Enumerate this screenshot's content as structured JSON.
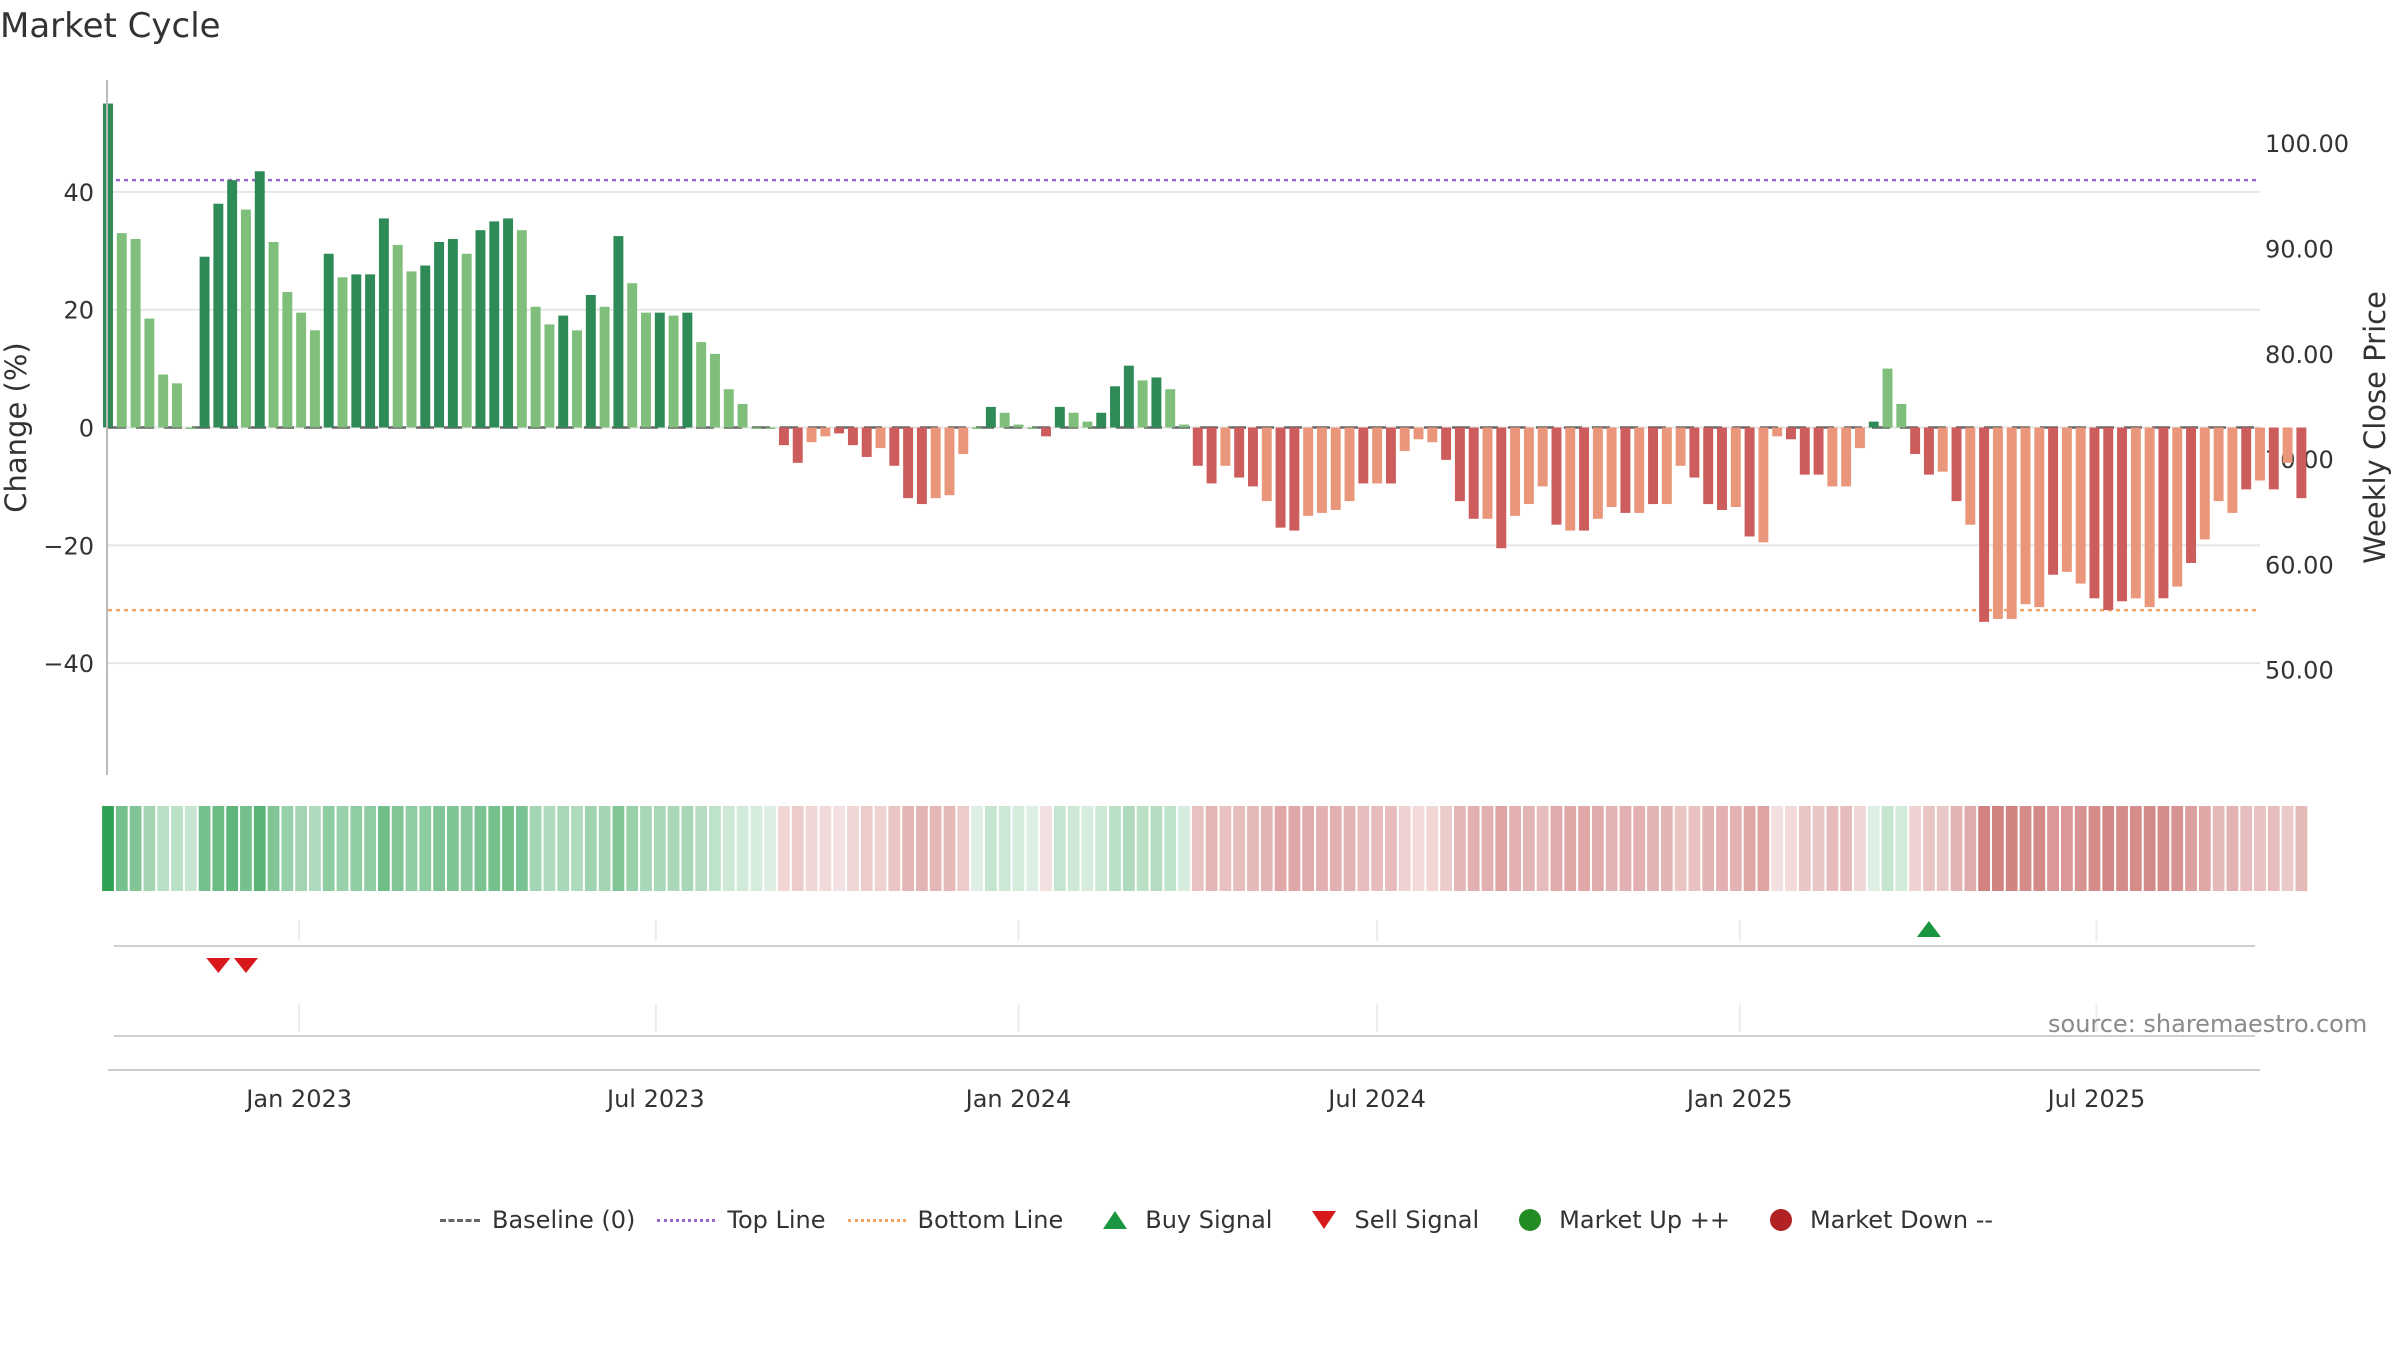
{
  "page": {
    "title": "Market Cycle",
    "source": "source: sharemaestro.com"
  },
  "colors": {
    "dark_green": "#2e8b57",
    "light_green": "#7fbf7b",
    "dark_red": "#cd5c5c",
    "light_red": "#e9967a",
    "top_line": "#9966cc",
    "bottom_line": "#f4a460",
    "buy": "#1a9641",
    "sell": "#d7191c",
    "market_up": "#228b22",
    "market_down": "#b22222"
  },
  "legend": [
    {
      "key": "baseline",
      "label": "Baseline (0)",
      "icon": "dash-line",
      "color": "#666666"
    },
    {
      "key": "top",
      "label": "Top Line",
      "icon": "dotted-line",
      "color": "#9966cc"
    },
    {
      "key": "bottom",
      "label": "Bottom Line",
      "icon": "dotted-line",
      "color": "#f4a460"
    },
    {
      "key": "buy",
      "label": "Buy Signal",
      "icon": "triangle-up",
      "color": "#1a9641"
    },
    {
      "key": "sell",
      "label": "Sell Signal",
      "icon": "triangle-down",
      "color": "#d7191c"
    },
    {
      "key": "up",
      "label": "Market Up ++",
      "icon": "circle",
      "color": "#228b22"
    },
    {
      "key": "down",
      "label": "Market Down --",
      "icon": "circle",
      "color": "#b22222"
    }
  ],
  "chart_data": {
    "type": "bar",
    "title": "Market Cycle",
    "xlabel": "",
    "ylabel": "Change (%)",
    "y2label": "Weekly Close Price",
    "ylim": [
      -59,
      59
    ],
    "y2lim": [
      40,
      106
    ],
    "yticks": [
      -40,
      -20,
      0,
      20,
      40
    ],
    "ytick_labels": [
      "−40",
      "−20",
      "0",
      "20",
      "40"
    ],
    "y2ticks": [
      50,
      60,
      70,
      80,
      90,
      100
    ],
    "y2tick_labels": [
      "50.00",
      "60.00",
      "70.00",
      "80.00",
      "90.00",
      "100.00"
    ],
    "xlim": [
      "2022-09-26",
      "2025-09-22"
    ],
    "xticks": [
      {
        "label": "Jan 2023",
        "date": "2023-01-01"
      },
      {
        "label": "Jul 2023",
        "date": "2023-07-01"
      },
      {
        "label": "Jan 2024",
        "date": "2024-01-01"
      },
      {
        "label": "Jul 2024",
        "date": "2024-07-01"
      },
      {
        "label": "Jan 2025",
        "date": "2025-01-01"
      },
      {
        "label": "Jul 2025",
        "date": "2025-07-01"
      }
    ],
    "grid": true,
    "legend_position": "bottom",
    "start_date": "2022-09-26",
    "interval_days": 7,
    "values": [
      55,
      33,
      32,
      18.5,
      9,
      7.5,
      0,
      29,
      38,
      42,
      37,
      43.5,
      31.5,
      23,
      19.5,
      16.5,
      29.5,
      25.5,
      26,
      26,
      35.5,
      31,
      26.5,
      27.5,
      31.5,
      32,
      29.5,
      33.5,
      35,
      35.5,
      33.5,
      20.5,
      17.5,
      19,
      16.5,
      22.5,
      20.5,
      32.5,
      24.5,
      19.5,
      19.5,
      19,
      19.5,
      14.5,
      12.5,
      6.5,
      4,
      0,
      0,
      -3,
      -6,
      -2.5,
      -1.5,
      -1,
      -3,
      -5,
      -3.5,
      -6.5,
      -12,
      -13,
      -12,
      -11.5,
      -4.5,
      0,
      3.5,
      2.5,
      0.5,
      0,
      -1.5,
      3.5,
      2.5,
      1,
      2.5,
      7,
      10.5,
      8,
      8.5,
      6.5,
      0.5,
      -6.5,
      -9.5,
      -6.5,
      -8.5,
      -10,
      -12.5,
      -17,
      -17.5,
      -15,
      -14.5,
      -14,
      -12.5,
      -9.5,
      -9.5,
      -9.5,
      -4,
      -2,
      -2.5,
      -5.5,
      -12.5,
      -15.5,
      -15.5,
      -20.5,
      -15,
      -13,
      -10,
      -16.5,
      -17.5,
      -17.5,
      -15.5,
      -13.5,
      -14.5,
      -14.5,
      -13,
      -13,
      -6.5,
      -8.5,
      -13,
      -14,
      -13.5,
      -18.5,
      -19.5,
      -1.5,
      -2,
      -8,
      -8,
      -10,
      -10,
      -3.5,
      1,
      10,
      4,
      -4.5,
      -8,
      -7.5,
      -12.5,
      -16.5,
      -33,
      -32.5,
      -32.5,
      -30,
      -30.5,
      -25,
      -24.5,
      -26.5,
      -29,
      -31,
      -29.5,
      -29,
      -30.5,
      -29,
      -27,
      -23,
      -19,
      -12.5,
      -14.5,
      -10.5,
      -9,
      -10.5,
      -6,
      -12
    ],
    "shades": [
      2,
      1,
      1,
      1,
      1,
      1,
      1,
      2,
      2,
      2,
      1,
      2,
      1,
      1,
      1,
      1,
      2,
      1,
      2,
      2,
      2,
      1,
      1,
      2,
      2,
      2,
      1,
      2,
      2,
      2,
      1,
      1,
      1,
      2,
      1,
      2,
      1,
      2,
      1,
      1,
      2,
      1,
      2,
      1,
      1,
      1,
      1,
      1,
      1,
      2,
      2,
      1,
      1,
      2,
      2,
      2,
      1,
      2,
      2,
      2,
      1,
      1,
      1,
      1,
      2,
      1,
      1,
      1,
      2,
      2,
      1,
      1,
      2,
      2,
      2,
      1,
      2,
      1,
      1,
      2,
      2,
      1,
      2,
      2,
      1,
      2,
      2,
      1,
      1,
      1,
      1,
      2,
      1,
      2,
      1,
      1,
      1,
      2,
      2,
      2,
      1,
      2,
      1,
      1,
      1,
      2,
      1,
      2,
      1,
      1,
      2,
      1,
      2,
      1,
      1,
      2,
      2,
      2,
      1,
      2,
      1,
      1,
      2,
      2,
      2,
      1,
      1,
      1,
      2,
      1,
      1,
      2,
      2,
      1,
      2,
      1,
      2,
      1,
      1,
      1,
      1,
      2,
      1,
      1,
      2,
      2,
      2,
      1,
      1,
      2,
      1,
      2,
      1,
      1,
      1,
      2,
      1,
      2,
      1,
      2
    ],
    "top_line": 42,
    "bottom_line": -31,
    "buy_signals": [
      "2025-04-07"
    ],
    "sell_signals": [
      "2022-11-21",
      "2022-12-05"
    ],
    "heatmap_intensity": [
      0.9,
      0.6,
      0.55,
      0.4,
      0.3,
      0.3,
      0.25,
      0.6,
      0.65,
      0.7,
      0.6,
      0.72,
      0.55,
      0.45,
      0.4,
      0.35,
      0.5,
      0.45,
      0.48,
      0.48,
      0.62,
      0.55,
      0.48,
      0.5,
      0.55,
      0.56,
      0.52,
      0.58,
      0.6,
      0.62,
      0.58,
      0.4,
      0.35,
      0.38,
      0.35,
      0.42,
      0.4,
      0.55,
      0.45,
      0.38,
      0.38,
      0.37,
      0.38,
      0.32,
      0.28,
      0.22,
      0.2,
      0.18,
      0.15,
      0.2,
      0.25,
      0.2,
      0.18,
      0.15,
      0.2,
      0.25,
      0.22,
      0.28,
      0.35,
      0.36,
      0.35,
      0.34,
      0.25,
      0.15,
      0.25,
      0.22,
      0.18,
      0.15,
      0.15,
      0.25,
      0.22,
      0.18,
      0.22,
      0.3,
      0.35,
      0.3,
      0.32,
      0.28,
      0.18,
      0.3,
      0.35,
      0.3,
      0.32,
      0.34,
      0.36,
      0.42,
      0.42,
      0.4,
      0.38,
      0.38,
      0.36,
      0.32,
      0.32,
      0.32,
      0.22,
      0.18,
      0.2,
      0.25,
      0.35,
      0.38,
      0.38,
      0.44,
      0.38,
      0.36,
      0.32,
      0.4,
      0.42,
      0.42,
      0.4,
      0.36,
      0.38,
      0.38,
      0.36,
      0.36,
      0.28,
      0.3,
      0.36,
      0.38,
      0.37,
      0.42,
      0.44,
      0.15,
      0.18,
      0.28,
      0.28,
      0.32,
      0.32,
      0.2,
      0.15,
      0.25,
      0.2,
      0.22,
      0.28,
      0.27,
      0.36,
      0.4,
      0.6,
      0.6,
      0.6,
      0.56,
      0.57,
      0.5,
      0.5,
      0.52,
      0.55,
      0.58,
      0.56,
      0.55,
      0.57,
      0.55,
      0.52,
      0.46,
      0.42,
      0.34,
      0.37,
      0.32,
      0.3,
      0.32,
      0.26,
      0.34
    ]
  }
}
